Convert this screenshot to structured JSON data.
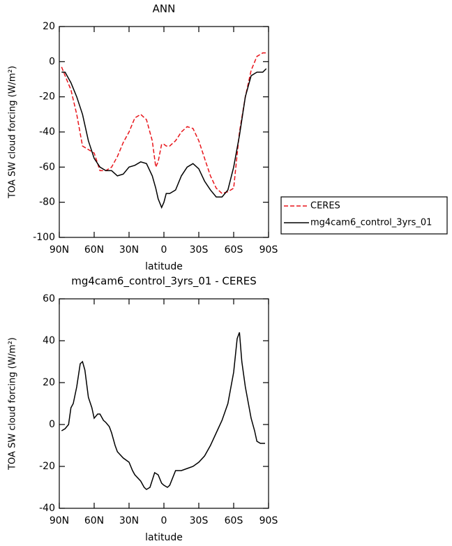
{
  "chart_data": [
    {
      "type": "line",
      "title": "ANN",
      "x_label": "latitude",
      "y_label": "TOA SW cloud forcing (W/m²)",
      "x": [
        88,
        85,
        80,
        75,
        70,
        65,
        60,
        55,
        50,
        45,
        40,
        35,
        30,
        25,
        20,
        15,
        10,
        7,
        5,
        2,
        0,
        -2,
        -5,
        -10,
        -15,
        -20,
        -25,
        -30,
        -35,
        -40,
        -45,
        -50,
        -55,
        -60,
        -65,
        -70,
        -75,
        -80,
        -85,
        -88
      ],
      "series": [
        {
          "name": "CERES",
          "color": "#e8141a",
          "dash": true,
          "values": [
            -3,
            -8,
            -16,
            -30,
            -48,
            -50,
            -52,
            -62,
            -62,
            -60,
            -54,
            -46,
            -40,
            -32,
            -30,
            -33,
            -45,
            -60,
            -57,
            -47,
            -47,
            -48,
            -48,
            -45,
            -40,
            -37,
            -38,
            -45,
            -55,
            -65,
            -72,
            -75,
            -74,
            -72,
            -40,
            -20,
            -5,
            3,
            5,
            5
          ]
        },
        {
          "name": "mg4cam6_control_3yrs_01",
          "color": "#000000",
          "dash": false,
          "values": [
            -6,
            -6,
            -12,
            -20,
            -30,
            -45,
            -55,
            -60,
            -62,
            -62,
            -65,
            -64,
            -60,
            -59,
            -57,
            -58,
            -65,
            -72,
            -78,
            -83,
            -80,
            -75,
            -75,
            -73,
            -65,
            -60,
            -58,
            -61,
            -68,
            -73,
            -77,
            -77,
            -73,
            -60,
            -42,
            -20,
            -8,
            -6,
            -6,
            -4
          ]
        }
      ],
      "xlim": [
        90,
        -90
      ],
      "xticks": [
        {
          "value": 90,
          "label": "90N"
        },
        {
          "value": 60,
          "label": "60N"
        },
        {
          "value": 30,
          "label": "30N"
        },
        0,
        {
          "value": -30,
          "label": "30S"
        },
        {
          "value": -60,
          "label": "60S"
        },
        {
          "value": -90,
          "label": "90S"
        }
      ],
      "ylim": [
        -100,
        20
      ],
      "yticks": [
        -100,
        -80,
        -60,
        -40,
        -20,
        0,
        20
      ]
    },
    {
      "type": "line",
      "title": "mg4cam6_control_3yrs_01 - CERES",
      "x_label": "latitude",
      "y_label": "TOA SW cloud forcing (W/m²)",
      "x": [
        88,
        85,
        82,
        80,
        78,
        75,
        72,
        70,
        68,
        65,
        62,
        60,
        57,
        55,
        52,
        50,
        47,
        45,
        42,
        40,
        35,
        30,
        27,
        25,
        20,
        17,
        15,
        12,
        8,
        5,
        2,
        0,
        -3,
        -5,
        -10,
        -15,
        -20,
        -25,
        -30,
        -35,
        -40,
        -45,
        -50,
        -55,
        -60,
        -63,
        -65,
        -67,
        -70,
        -75,
        -78,
        -80,
        -83,
        -87
      ],
      "series": [
        {
          "color": "#000000",
          "dash": false,
          "values": [
            -3,
            -2,
            0,
            8,
            10,
            18,
            29,
            30,
            26,
            13,
            8,
            3,
            5,
            5,
            2,
            1,
            -1,
            -4,
            -10,
            -13,
            -16,
            -18,
            -22,
            -24,
            -27,
            -30,
            -31,
            -30,
            -23,
            -24,
            -28,
            -29,
            -30,
            -29,
            -22,
            -22,
            -21,
            -20,
            -18,
            -15,
            -10,
            -4,
            2,
            10,
            25,
            41,
            44,
            30,
            18,
            3,
            -3,
            -8,
            -9,
            -9
          ]
        }
      ],
      "xlim": [
        90,
        -90
      ],
      "xticks": [
        {
          "value": 90,
          "label": "90N"
        },
        {
          "value": 60,
          "label": "60N"
        },
        {
          "value": 30,
          "label": "30N"
        },
        0,
        {
          "value": -30,
          "label": "30S"
        },
        {
          "value": -60,
          "label": "60S"
        },
        {
          "value": -90,
          "label": "90S"
        }
      ],
      "ylim": [
        -40,
        60
      ],
      "yticks": [
        -40,
        -20,
        0,
        20,
        40,
        60
      ]
    }
  ]
}
